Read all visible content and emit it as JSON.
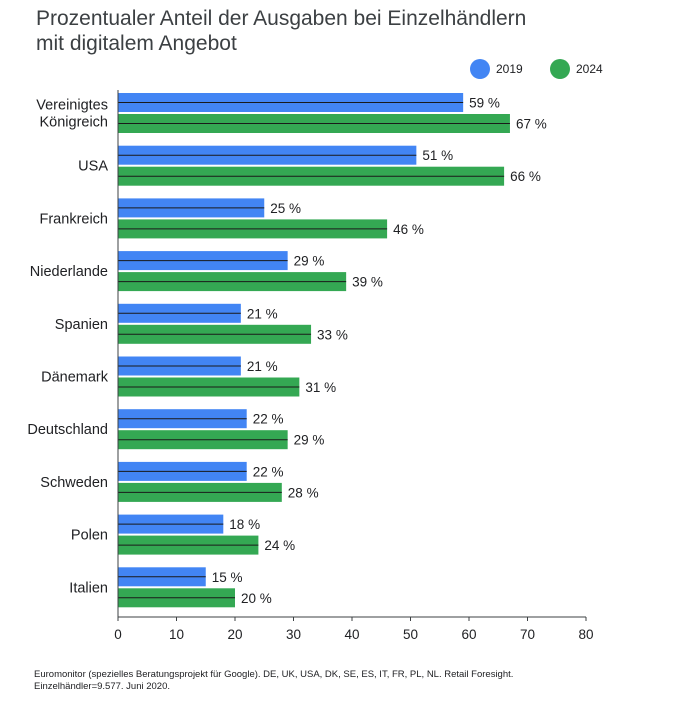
{
  "title_lines": [
    "Prozentualer Anteil der Ausgaben bei Einzelhändlern",
    "mit digitalem Angebot"
  ],
  "colors": {
    "series_2019": "#4285f4",
    "series_2024": "#34a853",
    "axis": "#3c4043"
  },
  "source_lines": [
    "Euromonitor (spezielles Beratungsprojekt für Google). DE, UK, USA, DK, SE, ES, IT, FR, PL, NL. Retail Foresight.",
    "Einzelhändler=9.577. Juni 2020."
  ],
  "chart_data": {
    "type": "bar",
    "orientation": "horizontal",
    "categories": [
      [
        "Vereinigtes",
        "Königreich"
      ],
      [
        "USA"
      ],
      [
        "Frankreich"
      ],
      [
        "Niederlande"
      ],
      [
        "Spanien"
      ],
      [
        "Dänemark"
      ],
      [
        "Deutschland"
      ],
      [
        "Schweden"
      ],
      [
        "Polen"
      ],
      [
        "Italien"
      ]
    ],
    "series": [
      {
        "name": "2019",
        "color": "#4285f4",
        "values": [
          59,
          51,
          25,
          29,
          21,
          21,
          22,
          22,
          18,
          15
        ],
        "labels": [
          "59 %",
          "51 %",
          "25 %",
          "29 %",
          "21 %",
          "21 %",
          "22 %",
          "22 %",
          "18 %",
          "15 %"
        ]
      },
      {
        "name": "2024",
        "color": "#34a853",
        "values": [
          67,
          66,
          46,
          39,
          33,
          31,
          29,
          28,
          24,
          20
        ],
        "labels": [
          "67 %",
          "66 %",
          "46 %",
          "39 %",
          "33 %",
          "31 %",
          "29 %",
          "28 %",
          "24 %",
          "20 %"
        ]
      }
    ],
    "xlim": [
      0,
      80
    ],
    "xticks": [
      "0",
      "10",
      "20",
      "30",
      "40",
      "50",
      "60",
      "70",
      "80"
    ],
    "grid": false,
    "legend_position": "top-right"
  }
}
